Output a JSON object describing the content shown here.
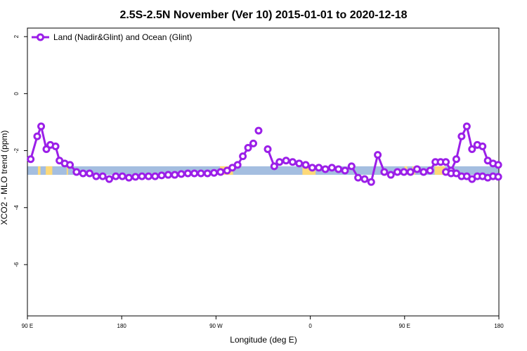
{
  "chart_data": {
    "type": "line",
    "title": "2.5S-2.5N November (Ver 10)   2015-01-01 to 2020-12-18",
    "xlabel": "Longitude (deg E)",
    "ylabel": "XCO2 - MLO trend (ppm)",
    "xlim": [
      90,
      450
    ],
    "ylim": [
      -7.8,
      2.3
    ],
    "x_tick_values": [
      90,
      162,
      234,
      306,
      378,
      450
    ],
    "x_tick_labels": [
      "90 E",
      "180",
      "90 W",
      "0",
      "90 E",
      "180"
    ],
    "y_tick_values": [
      2,
      0,
      -2,
      -4,
      -6
    ],
    "y_tick_labels": [
      "2",
      "0",
      "-2",
      "-4",
      "-6"
    ],
    "legend": {
      "position": "top-left",
      "label": "Land (Nadir&Glint) and Ocean (Glint)"
    },
    "colors": {
      "series": "#9B1FE8",
      "ocean_band": "#A4BEE0",
      "land_band": "#FDD978"
    },
    "land_ocean_band": {
      "y_range": [
        -2.85,
        -2.55
      ],
      "land_segments": [
        [
          98,
          100
        ],
        [
          104,
          109
        ],
        [
          120,
          121
        ],
        [
          237,
          247
        ],
        [
          300,
          310
        ],
        [
          378,
          380
        ],
        [
          384,
          386
        ],
        [
          401,
          409
        ]
      ]
    },
    "series": [
      {
        "name": "Land (Nadir&Glint) and Ocean (Glint)",
        "segments": [
          {
            "x": [
              92.5,
              97.5,
              100.5,
              104.5,
              107.5,
              111.5,
              114.5,
              118.5,
              122.5,
              127.5,
              132.5,
              137.5,
              142.5,
              147.5,
              152.5,
              157.5,
              162.5,
              167.5,
              172.5,
              177.5,
              182.5,
              187.5,
              192.5,
              197.5,
              202.5,
              207.5,
              212.5,
              217.5,
              222.5,
              227.5,
              232.5,
              237.5,
              242.5,
              246.5,
              250.5,
              254.5,
              258.5,
              262.5
            ],
            "y": [
              -2.3,
              -1.5,
              -1.15,
              -1.95,
              -1.8,
              -1.85,
              -2.35,
              -2.45,
              -2.5,
              -2.75,
              -2.8,
              -2.8,
              -2.9,
              -2.9,
              -3.0,
              -2.9,
              -2.9,
              -2.95,
              -2.92,
              -2.9,
              -2.9,
              -2.9,
              -2.87,
              -2.85,
              -2.85,
              -2.82,
              -2.8,
              -2.8,
              -2.8,
              -2.8,
              -2.78,
              -2.75,
              -2.7,
              -2.6,
              -2.5,
              -2.2,
              -1.9,
              -1.75
            ]
          },
          {
            "x": [
              266.5
            ],
            "y": [
              -1.3
            ]
          },
          {
            "x": [
              273.5,
              278.5,
              282.5,
              287.5,
              292.5,
              297.5,
              302.5,
              307.5,
              312.5,
              317.5,
              322.5,
              327.5,
              332.5,
              337.5,
              342.5,
              347.5,
              352.5,
              357.5,
              362.5,
              367.5,
              372.5,
              377.5,
              382.5,
              387.5,
              392.5,
              397.5,
              401.5,
              405.5,
              409.5,
              413.5,
              417.5,
              421.5,
              425.5,
              429.5,
              433.5,
              437.5,
              441.5,
              445.5,
              449.5
            ],
            "y": [
              -1.95,
              -2.55,
              -2.4,
              -2.35,
              -2.4,
              -2.45,
              -2.5,
              -2.6,
              -2.6,
              -2.65,
              -2.6,
              -2.65,
              -2.7,
              -2.55,
              -2.95,
              -3.0,
              -3.1,
              -2.15,
              -2.75,
              -2.85,
              -2.75,
              -2.75,
              -2.75,
              -2.65,
              -2.75,
              -2.7,
              -2.4,
              -2.4,
              -2.4,
              -2.7,
              -2.3,
              -1.5,
              -1.15,
              -1.95,
              -1.8,
              -1.85,
              -2.35,
              -2.45,
              -2.5
            ]
          },
          {
            "x": [
              409.5,
              413.5,
              417.5,
              421.5,
              425.5
            ],
            "y": [
              -2.75,
              -2.8,
              -2.8,
              -2.9,
              -2.9
            ]
          },
          {
            "x": [
              429.5,
              433.5,
              437.5,
              441.5,
              445.5,
              449.5
            ],
            "y": [
              -3.0,
              -2.9,
              -2.9,
              -2.95,
              -2.9,
              -2.92
            ]
          }
        ]
      }
    ]
  }
}
